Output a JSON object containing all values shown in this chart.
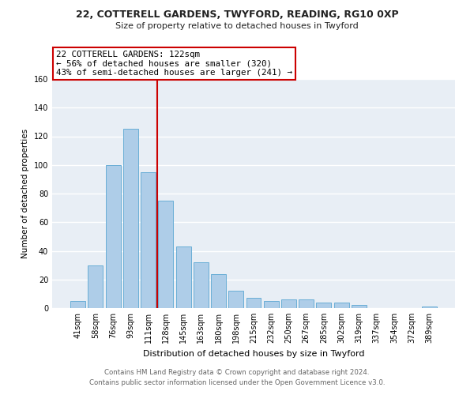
{
  "title1": "22, COTTERELL GARDENS, TWYFORD, READING, RG10 0XP",
  "title2": "Size of property relative to detached houses in Twyford",
  "xlabel": "Distribution of detached houses by size in Twyford",
  "ylabel": "Number of detached properties",
  "bar_labels": [
    "41sqm",
    "58sqm",
    "76sqm",
    "93sqm",
    "111sqm",
    "128sqm",
    "145sqm",
    "163sqm",
    "180sqm",
    "198sqm",
    "215sqm",
    "232sqm",
    "250sqm",
    "267sqm",
    "285sqm",
    "302sqm",
    "319sqm",
    "337sqm",
    "354sqm",
    "372sqm",
    "389sqm"
  ],
  "bar_values": [
    5,
    30,
    100,
    125,
    95,
    75,
    43,
    32,
    24,
    12,
    7,
    5,
    6,
    6,
    4,
    4,
    2,
    0,
    0,
    0,
    1
  ],
  "bar_color": "#aecde8",
  "bar_edge_color": "#6aaed6",
  "ylim": [
    0,
    160
  ],
  "vline_color": "#cc0000",
  "annotation_title": "22 COTTERELL GARDENS: 122sqm",
  "annotation_line1": "← 56% of detached houses are smaller (320)",
  "annotation_line2": "43% of semi-detached houses are larger (241) →",
  "annotation_box_color": "#ffffff",
  "annotation_box_edge": "#cc0000",
  "footer1": "Contains HM Land Registry data © Crown copyright and database right 2024.",
  "footer2": "Contains public sector information licensed under the Open Government Licence v3.0.",
  "background_color": "#ffffff",
  "plot_bg_color": "#e8eef5",
  "grid_color": "#ffffff"
}
